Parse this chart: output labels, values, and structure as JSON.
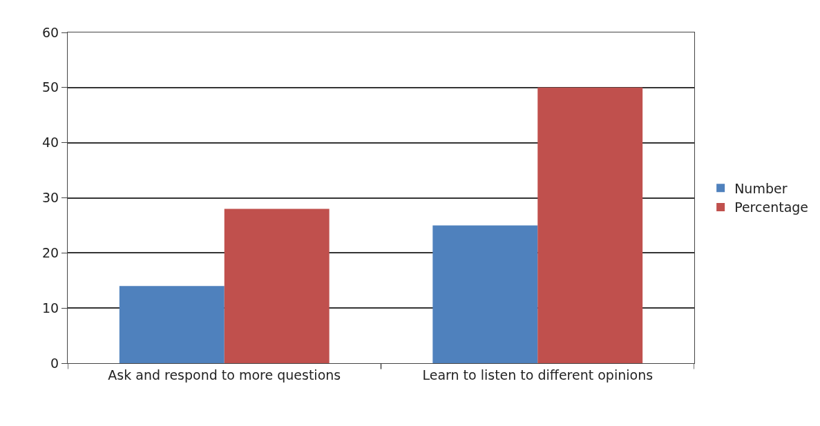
{
  "chart_data": {
    "type": "bar",
    "categories": [
      "Ask and respond to more questions",
      "Learn to listen to different opinions"
    ],
    "series": [
      {
        "name": "Number",
        "color": "#4f81bd",
        "values": [
          14,
          25
        ]
      },
      {
        "name": "Percentage",
        "color": "#c0504d",
        "values": [
          28,
          50
        ]
      }
    ],
    "ylim": [
      0,
      60
    ],
    "yticks": [
      0,
      10,
      20,
      30,
      40,
      50,
      60
    ],
    "grid": "y",
    "legend": "right"
  }
}
